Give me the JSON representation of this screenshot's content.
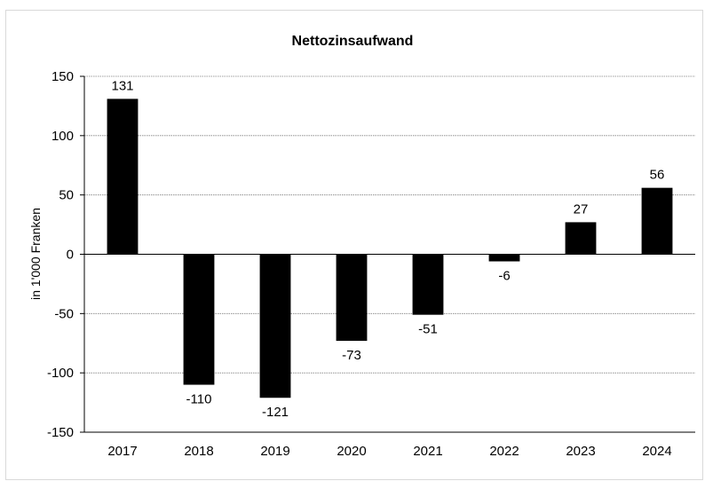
{
  "chart_data": {
    "type": "bar",
    "title": "Nettozinsaufwand",
    "xlabel": "",
    "ylabel": "in 1'000 Franken",
    "categories": [
      "2017",
      "2018",
      "2019",
      "2020",
      "2021",
      "2022",
      "2023",
      "2024"
    ],
    "values": [
      131,
      -110,
      -121,
      -73,
      -51,
      -6,
      27,
      56
    ],
    "data_labels": [
      "131",
      "-110",
      "-121",
      "-73",
      "-51",
      "-6",
      "27",
      "56"
    ],
    "ylim": [
      -150,
      150
    ],
    "yticks": [
      150,
      100,
      50,
      0,
      -50,
      -100,
      -150
    ],
    "ytick_labels": [
      "150",
      "100",
      "50",
      "0",
      "-50",
      "-100",
      "-150"
    ],
    "grid": true,
    "legend": "none",
    "bar_color": "#000000",
    "grid_color": "#808080"
  }
}
